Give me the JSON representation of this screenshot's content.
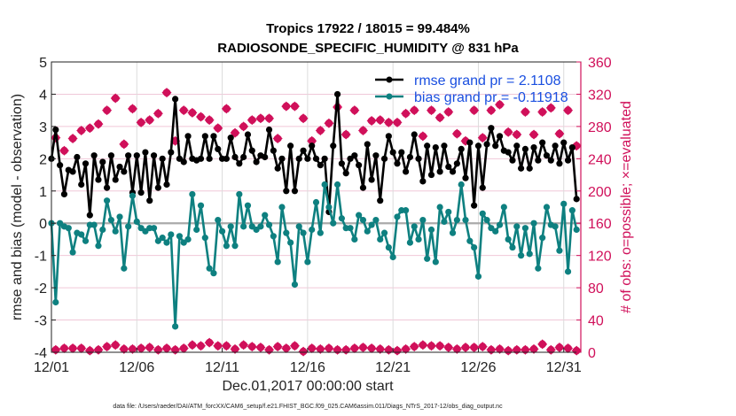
{
  "chart_data": {
    "type": "line",
    "title": [
      "Tropics 17922 / 18015 = 99.484%",
      "RADIOSONDE_SPECIFIC_HUMIDITY @ 831 hPa"
    ],
    "xlabel": "Dec.01,2017 00:00:00 start",
    "ylabel_left": "rmse and bias (model - observation)",
    "ylabel_right": "# of obs: o=possible; ×=evaluated",
    "xlim_days": [
      0,
      31
    ],
    "ylim_left": [
      -4,
      5
    ],
    "ylim_right": [
      0,
      360
    ],
    "x_ticks": [
      {
        "day": 0,
        "label": "12/01"
      },
      {
        "day": 5,
        "label": "12/06"
      },
      {
        "day": 10,
        "label": "12/11"
      },
      {
        "day": 15,
        "label": "12/16"
      },
      {
        "day": 20,
        "label": "12/21"
      },
      {
        "day": 25,
        "label": "12/26"
      },
      {
        "day": 30,
        "label": "12/31"
      }
    ],
    "y_ticks_left": [
      5,
      4,
      3,
      2,
      1,
      0,
      -1,
      -2,
      -3,
      -4
    ],
    "y_ticks_right": [
      360,
      320,
      280,
      240,
      200,
      160,
      120,
      80,
      40,
      0
    ],
    "grid": true,
    "legend": {
      "placement": "top-right",
      "entries": [
        {
          "label": "rmse grand pr = 2.1108",
          "color": "#000000"
        },
        {
          "label": "bias grand pr = -0.11918",
          "color": "#0e8080"
        }
      ]
    },
    "time_step_days": 0.25,
    "series": [
      {
        "name": "rmse",
        "color": "#000000",
        "values": [
          2.0,
          2.9,
          1.8,
          0.9,
          1.65,
          1.6,
          2.05,
          1.2,
          1.85,
          0.25,
          2.1,
          1.35,
          1.9,
          1.1,
          2.1,
          1.35,
          1.75,
          1.6,
          2.1,
          0.95,
          2.1,
          0.95,
          2.2,
          0.7,
          2.1,
          1.1,
          2.0,
          1.2,
          2.2,
          3.85,
          2.0,
          1.9,
          2.7,
          2.0,
          1.95,
          2.0,
          2.7,
          2.0,
          2.7,
          2.3,
          2.0,
          2.0,
          2.65,
          2.05,
          1.85,
          2.05,
          2.75,
          2.25,
          1.9,
          2.1,
          2.05,
          2.9,
          2.25,
          1.7,
          2.0,
          1.0,
          2.4,
          1.0,
          2.0,
          2.25,
          2.0,
          2.4,
          2.0,
          1.8,
          2.0,
          0.35,
          2.4,
          4.0,
          1.85,
          1.55,
          2.0,
          2.1,
          1.8,
          1.1,
          2.45,
          1.35,
          2.1,
          0.7,
          2.0,
          2.7,
          2.2,
          1.85,
          2.2,
          1.6,
          2.05,
          2.75,
          2.0,
          1.3,
          2.4,
          1.5,
          2.35,
          1.6,
          2.4,
          1.75,
          1.6,
          1.85,
          2.3,
          1.4,
          2.5,
          0.55,
          2.4,
          1.1,
          2.45,
          2.95,
          2.4,
          2.7,
          2.25,
          2.2,
          1.95,
          2.4,
          1.7,
          2.3,
          1.7,
          2.35,
          1.95,
          2.5,
          2.1,
          1.95,
          2.4,
          1.85,
          2.5,
          1.95,
          2.35,
          0.75
        ],
        "_note": "values in left-axis units"
      },
      {
        "name": "bias",
        "color": "#0e8080",
        "values": [
          0.0,
          -2.45,
          0.0,
          -0.1,
          -0.15,
          -0.9,
          -0.3,
          -0.35,
          -0.55,
          -0.05,
          -0.05,
          -0.7,
          -0.2,
          0.7,
          0.1,
          -0.25,
          0.2,
          -1.4,
          -0.1,
          0.85,
          0.05,
          -0.15,
          -0.25,
          -0.15,
          -0.15,
          -0.55,
          -0.45,
          -0.6,
          -0.35,
          -3.2,
          -0.4,
          -0.6,
          -0.5,
          0.9,
          -0.2,
          0.55,
          -0.45,
          -1.4,
          -1.55,
          0.1,
          -0.25,
          -0.7,
          -0.1,
          -0.7,
          0.9,
          -0.1,
          0.55,
          -0.1,
          -0.2,
          -0.1,
          0.25,
          -0.05,
          -0.4,
          -1.2,
          0.5,
          -0.3,
          -0.6,
          -1.9,
          -0.1,
          -0.3,
          -1.2,
          -0.2,
          0.65,
          -0.3,
          1.2,
          0.5,
          0.0,
          1.2,
          0.15,
          -0.15,
          -0.15,
          -0.5,
          0.25,
          0.1,
          -0.25,
          -0.05,
          0.1,
          -0.5,
          -0.3,
          -0.75,
          -1.05,
          0.2,
          0.4,
          0.4,
          -0.6,
          -0.1,
          -0.5,
          0.1,
          -1.1,
          -0.2,
          -1.2,
          0.5,
          0.05,
          0.35,
          -0.3,
          0.1,
          1.2,
          0.1,
          -0.55,
          -0.75,
          -1.65,
          0.3,
          0.1,
          -0.15,
          -0.25,
          -0.05,
          0.5,
          -0.5,
          -0.75,
          -0.1,
          -1.0,
          -0.15,
          -0.95,
          0.0,
          -1.4,
          -0.45,
          0.5,
          -0.05,
          -0.1,
          -0.85,
          0.6,
          -1.5,
          0.4,
          -0.2
        ],
        "_note": "values in left-axis units"
      },
      {
        "name": "obs possible/evaluated (upper)",
        "color": "#d0105a",
        "axis": "right",
        "time_step_days": 0.5,
        "values": [
          266,
          250,
          265,
          275,
          278,
          283,
          300,
          315,
          258,
          302,
          285,
          288,
          296,
          322,
          262,
          300,
          297,
          292,
          288,
          278,
          302,
          272,
          280,
          288,
          290,
          290,
          265,
          305,
          305,
          290,
          262,
          275,
          284,
          304,
          270,
          300,
          275,
          287,
          288,
          285,
          285,
          296,
          300,
          268,
          300,
          291,
          298,
          271,
          262,
          300,
          266,
          300,
          307,
          273,
          270,
          298,
          270,
          298,
          303,
          271,
          300,
          256
        ],
        "_note": "approximate; counts read from right axis"
      },
      {
        "name": "obs possible/evaluated (lower)",
        "color": "#d0105a",
        "axis": "right",
        "time_step_days": 0.5,
        "values": [
          3,
          5,
          5,
          5,
          2,
          3,
          7,
          9,
          4,
          4,
          5,
          6,
          3,
          5,
          3,
          5,
          9,
          8,
          12,
          8,
          8,
          4,
          9,
          7,
          6,
          3,
          7,
          5,
          8,
          1,
          5,
          4,
          5,
          3,
          3,
          5,
          6,
          5,
          4,
          3,
          2,
          4,
          7,
          9,
          8,
          8,
          6,
          4,
          6,
          6,
          7,
          3,
          4,
          2,
          3,
          3,
          4,
          10,
          3,
          6,
          5,
          2
        ],
        "_note": "approximate; counts read from right axis"
      }
    ],
    "zero_line": {
      "value": 0,
      "color": "#aaaaaa"
    },
    "footer": "data file: /Users/raeder/DAI/ATM_forcXX/CAM6_setup/f.e21.FHIST_BGC.f09_025.CAM6assim.011/Diags_NTrS_2017-12/obs_diag_output.nc"
  },
  "colors": {
    "rmse": "#000000",
    "bias": "#0e8080",
    "counts": "#d0105a",
    "legend_text": "#1a4fe0",
    "grid_pink": "#f0c8d8",
    "grid_gray": "#dcdcdc"
  }
}
